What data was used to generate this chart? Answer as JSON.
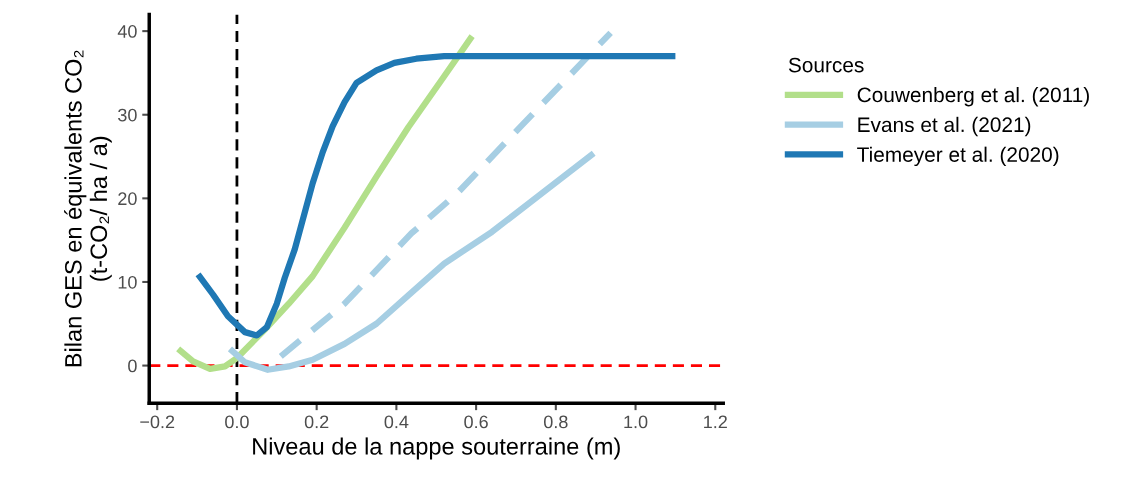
{
  "chart_data": {
    "type": "line",
    "xlabel": "Niveau de la nappe souterraine (m)",
    "ylabel": "Bilan GES en équivalents CO₂\n(t-CO₂/ ha / a)",
    "legend_title": "Sources",
    "legend": "right",
    "grid": false,
    "marker": "none",
    "xlim": [
      -0.22,
      1.22
    ],
    "ylim": [
      -4.5,
      42
    ],
    "xticks": [
      {
        "value": -0.2,
        "label": "−0.2"
      },
      {
        "value": 0.0,
        "label": "0.0"
      },
      {
        "value": 0.2,
        "label": "0.2"
      },
      {
        "value": 0.4,
        "label": "0.4"
      },
      {
        "value": 0.6,
        "label": "0.6"
      },
      {
        "value": 0.8,
        "label": "0.8"
      },
      {
        "value": 1.0,
        "label": "1.0"
      },
      {
        "value": 1.2,
        "label": "1.2"
      }
    ],
    "yticks": [
      0,
      10,
      20,
      30,
      40
    ],
    "ref_lines": [
      {
        "axis": "y",
        "value": 0,
        "color": "#ff0000",
        "line_style": "dashed"
      },
      {
        "axis": "x",
        "value": 0,
        "color": "#000000",
        "line_style": "dashed"
      }
    ],
    "series": [
      {
        "name": "Couwenberg et al. (2011)",
        "color": "#b2df8a",
        "line_style": "solid",
        "x": [
          -0.1475,
          -0.11,
          -0.0675,
          -0.03,
          0.0,
          0.07,
          0.13,
          0.19,
          0.27,
          0.35,
          0.43,
          0.52,
          0.59
        ],
        "values": [
          2.0,
          0.5,
          -0.4,
          -0.1,
          0.9,
          4.3,
          7.4,
          10.7,
          16.5,
          22.6,
          28.5,
          34.6,
          39.4
        ]
      },
      {
        "name": "Evans et al. (2021)",
        "color": "#a6cee3",
        "line_style": "solid",
        "x": [
          -0.0175,
          0.02,
          0.0775,
          0.13,
          0.19,
          0.27,
          0.35,
          0.43,
          0.52,
          0.64,
          0.77,
          0.895
        ],
        "values": [
          2.0,
          0.4,
          -0.5,
          -0.1,
          0.7,
          2.6,
          5.0,
          8.4,
          12.2,
          16.0,
          20.8,
          25.4
        ]
      },
      {
        "color": "#a6cee3",
        "line_style": "dashed",
        "x": [
          0.11,
          0.27,
          0.4375,
          0.5525,
          0.72,
          0.9375
        ],
        "values": [
          1.1,
          7.4,
          15.8,
          20.6,
          29.0,
          39.8
        ]
      },
      {
        "name": "Tiemeyer et al. (2020)",
        "color": "#1f78b4",
        "line_style": "solid",
        "x": [
          -0.0975,
          -0.06,
          -0.0225,
          0.02,
          0.05,
          0.075,
          0.1,
          0.12,
          0.145,
          0.19,
          0.215,
          0.24,
          0.27,
          0.3,
          0.35,
          0.395,
          0.45,
          0.52,
          1.1
        ],
        "values": [
          10.9,
          8.5,
          5.9,
          4.0,
          3.6,
          4.6,
          7.4,
          10.5,
          13.9,
          21.8,
          25.5,
          28.6,
          31.5,
          33.8,
          35.3,
          36.2,
          36.7,
          37.0,
          37.0
        ]
      }
    ]
  }
}
